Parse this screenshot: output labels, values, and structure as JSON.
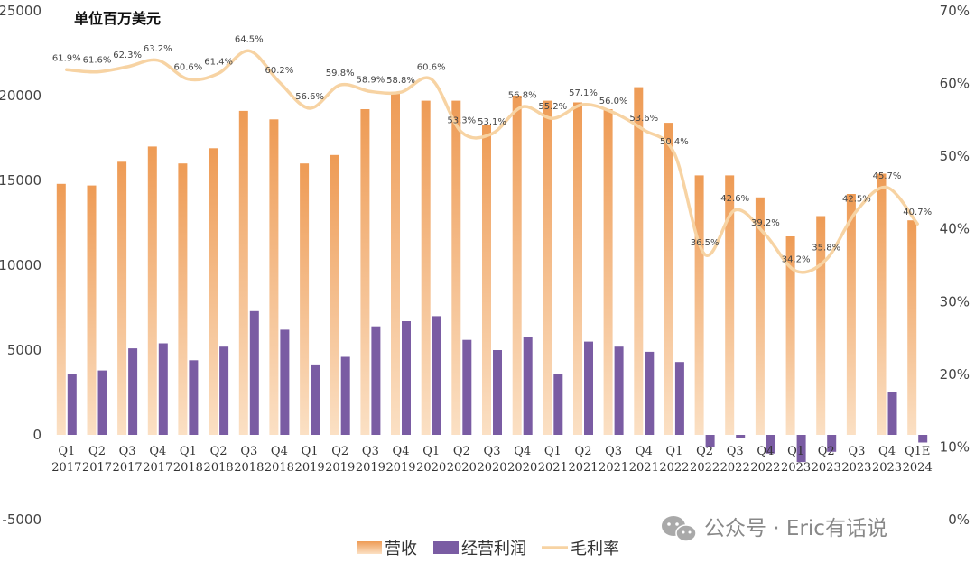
{
  "chart_data": {
    "type": "bar",
    "title": "单位百万美元",
    "categories": [
      {
        "q": "Q1",
        "y": "2017"
      },
      {
        "q": "Q2",
        "y": "2017"
      },
      {
        "q": "Q3",
        "y": "2017"
      },
      {
        "q": "Q4",
        "y": "2017"
      },
      {
        "q": "Q1",
        "y": "2018"
      },
      {
        "q": "Q2",
        "y": "2018"
      },
      {
        "q": "Q3",
        "y": "2018"
      },
      {
        "q": "Q4",
        "y": "2018"
      },
      {
        "q": "Q1",
        "y": "2019"
      },
      {
        "q": "Q2",
        "y": "2019"
      },
      {
        "q": "Q3",
        "y": "2019"
      },
      {
        "q": "Q4",
        "y": "2019"
      },
      {
        "q": "Q1",
        "y": "2020"
      },
      {
        "q": "Q2",
        "y": "2020"
      },
      {
        "q": "Q3",
        "y": "2020"
      },
      {
        "q": "Q4",
        "y": "2020"
      },
      {
        "q": "Q1",
        "y": "2021"
      },
      {
        "q": "Q2",
        "y": "2021"
      },
      {
        "q": "Q3",
        "y": "2021"
      },
      {
        "q": "Q4",
        "y": "2021"
      },
      {
        "q": "Q1",
        "y": "2022"
      },
      {
        "q": "Q2",
        "y": "2022"
      },
      {
        "q": "Q3",
        "y": "2022"
      },
      {
        "q": "Q4",
        "y": "2022"
      },
      {
        "q": "Q1",
        "y": "2023"
      },
      {
        "q": "Q2",
        "y": "2023"
      },
      {
        "q": "Q3",
        "y": "2023"
      },
      {
        "q": "Q4",
        "y": "2023"
      },
      {
        "q": "Q1E",
        "y": "2024"
      }
    ],
    "series": [
      {
        "name": "营收",
        "axis": "left",
        "type": "bar",
        "values": [
          14800,
          14700,
          16100,
          17000,
          16000,
          16900,
          19100,
          18600,
          16000,
          16500,
          19200,
          20200,
          19700,
          19700,
          18300,
          20000,
          19700,
          19600,
          19200,
          20500,
          18400,
          15300,
          15300,
          14000,
          11700,
          12900,
          14200,
          15400,
          12650
        ]
      },
      {
        "name": "经营利润",
        "axis": "left",
        "type": "bar",
        "values": [
          3600,
          3800,
          5100,
          5400,
          4400,
          5200,
          7300,
          6200,
          4100,
          4600,
          6400,
          6700,
          7000,
          5600,
          5000,
          5800,
          3600,
          5500,
          5200,
          4900,
          4300,
          -700,
          -200,
          -1100,
          -1600,
          -1000,
          0,
          2500,
          -450
        ]
      },
      {
        "name": "毛利率",
        "axis": "right",
        "type": "line",
        "values": [
          61.9,
          61.6,
          62.3,
          63.2,
          60.6,
          61.4,
          64.5,
          60.2,
          56.6,
          59.8,
          58.9,
          58.8,
          60.6,
          53.3,
          53.1,
          56.8,
          55.2,
          57.1,
          56.0,
          53.6,
          50.4,
          36.5,
          42.6,
          39.2,
          34.2,
          35.8,
          42.5,
          45.7,
          40.7
        ],
        "labels": [
          "61.9%",
          "61.6%",
          "62.3%",
          "63.2%",
          "60.6%",
          "61.4%",
          "64.5%",
          "60.2%",
          "56.6%",
          "59.8%",
          "58.9%",
          "58.8%",
          "60.6%",
          "53.3%",
          "53.1%",
          "56.8%",
          "55.2%",
          "57.1%",
          "56.0%",
          "53.6%",
          "50.4%",
          "36.5%",
          "42.6%",
          "39.2%",
          "34.2%",
          "35.8%",
          "42.5%",
          "45.7%",
          "40.7%"
        ]
      }
    ],
    "y_left": {
      "min": -5000,
      "max": 25000,
      "ticks": [
        "-5000",
        "0",
        "5000",
        "10000",
        "15000",
        "20000",
        "25000"
      ],
      "tick_values": [
        -5000,
        0,
        5000,
        10000,
        15000,
        20000,
        25000
      ]
    },
    "y_right": {
      "min": 0,
      "max": 70,
      "ticks": [
        "0%",
        "10%",
        "20%",
        "30%",
        "40%",
        "50%",
        "60%",
        "70%"
      ],
      "tick_values": [
        0,
        10,
        20,
        30,
        40,
        50,
        60,
        70
      ]
    },
    "grid": false,
    "legend_position": "bottom",
    "colors": {
      "revenue": "#ee9b55",
      "revenue_light": "#fbe0c4",
      "profit": "#7a5ca3",
      "margin": "#f7d3a3"
    }
  },
  "legend": {
    "revenue": "营收",
    "profit": "经营利润",
    "margin": "毛利率"
  },
  "watermark": {
    "icon": "wechat-icon",
    "text": "公众号 · Eric有话说"
  }
}
